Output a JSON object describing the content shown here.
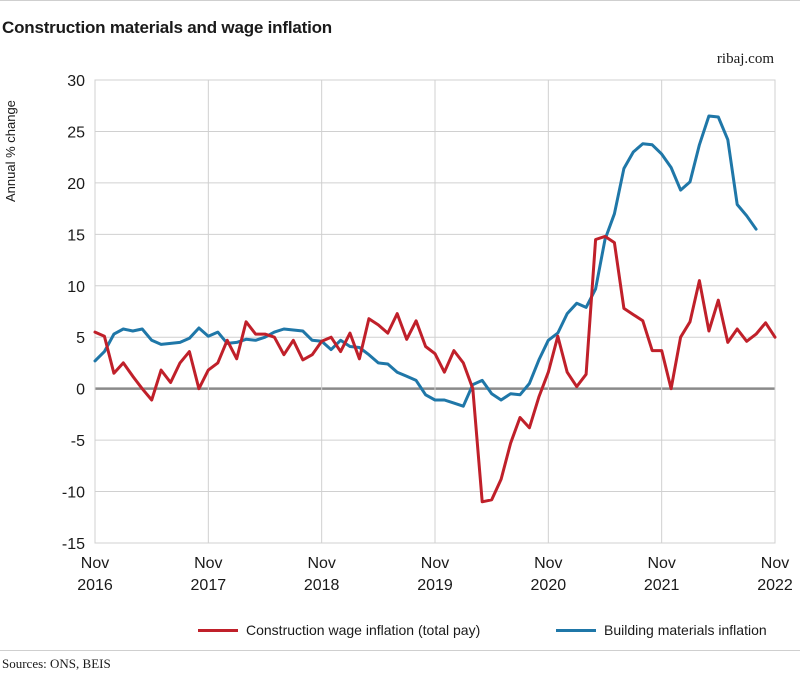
{
  "header": {
    "title": "Construction materials and wage inflation",
    "brand": "ribaj.com"
  },
  "footer": {
    "source": "Sources: ONS, BEIS"
  },
  "colors": {
    "wage": "#c0202a",
    "materials": "#1f77a8",
    "grid": "#d0d0d0",
    "zero": "#8a8a8a"
  },
  "chart_data": {
    "type": "line",
    "title": "Construction materials and wage inflation",
    "ylabel": "Annual % change",
    "xlabel": "",
    "ylim": [
      -15,
      30
    ],
    "yticks": [
      30,
      25,
      20,
      15,
      10,
      5,
      0,
      -5,
      -10,
      -15
    ],
    "xlim": [
      "2016-11",
      "2022-11"
    ],
    "xticks": [
      {
        "month": "Nov",
        "year": "2016"
      },
      {
        "month": "Nov",
        "year": "2017"
      },
      {
        "month": "Nov",
        "year": "2018"
      },
      {
        "month": "Nov",
        "year": "2019"
      },
      {
        "month": "Nov",
        "year": "2020"
      },
      {
        "month": "Nov",
        "year": "2021"
      },
      {
        "month": "Nov",
        "year": "2022"
      }
    ],
    "grid": true,
    "legend_position": "bottom",
    "series": [
      {
        "name": "Construction wage inflation (total pay)",
        "start": "2016-11",
        "values": [
          5.5,
          5.1,
          1.5,
          2.5,
          1.2,
          0.0,
          -1.1,
          1.8,
          0.6,
          2.5,
          3.6,
          0.0,
          1.8,
          2.5,
          4.7,
          2.9,
          6.5,
          5.3,
          5.3,
          5.0,
          3.3,
          4.7,
          2.8,
          3.3,
          4.6,
          5.0,
          3.6,
          5.4,
          2.9,
          6.8,
          6.2,
          5.4,
          7.3,
          4.8,
          6.6,
          4.1,
          3.4,
          1.6,
          3.7,
          2.5,
          0.0,
          -11.0,
          -10.8,
          -8.8,
          -5.3,
          -2.8,
          -3.8,
          -0.8,
          1.6,
          5.1,
          1.6,
          0.2,
          1.4,
          14.5,
          14.8,
          14.2,
          7.8,
          7.2,
          6.6,
          3.7,
          3.7,
          0.0,
          5.0,
          6.5,
          10.5,
          5.6,
          8.6,
          4.5,
          5.8,
          4.6,
          5.3,
          6.4,
          5.0
        ]
      },
      {
        "name": "Building materials inflation",
        "start": "2016-11",
        "values": [
          2.7,
          3.6,
          5.3,
          5.8,
          5.6,
          5.8,
          4.7,
          4.3,
          4.4,
          4.5,
          4.9,
          5.9,
          5.1,
          5.5,
          4.4,
          4.5,
          4.8,
          4.7,
          5.0,
          5.5,
          5.8,
          5.7,
          5.6,
          4.7,
          4.6,
          3.8,
          4.7,
          4.1,
          4.0,
          3.3,
          2.5,
          2.4,
          1.6,
          1.2,
          0.8,
          -0.6,
          -1.1,
          -1.1,
          -1.4,
          -1.7,
          0.4,
          0.8,
          -0.5,
          -1.1,
          -0.5,
          -0.6,
          0.5,
          2.8,
          4.7,
          5.4,
          7.3,
          8.3,
          7.9,
          9.7,
          14.5,
          17.0,
          21.4,
          23.0,
          23.8,
          23.7,
          22.8,
          21.5,
          19.3,
          20.1,
          23.7,
          26.5,
          26.4,
          24.2,
          17.9,
          16.8,
          15.5
        ]
      }
    ]
  }
}
